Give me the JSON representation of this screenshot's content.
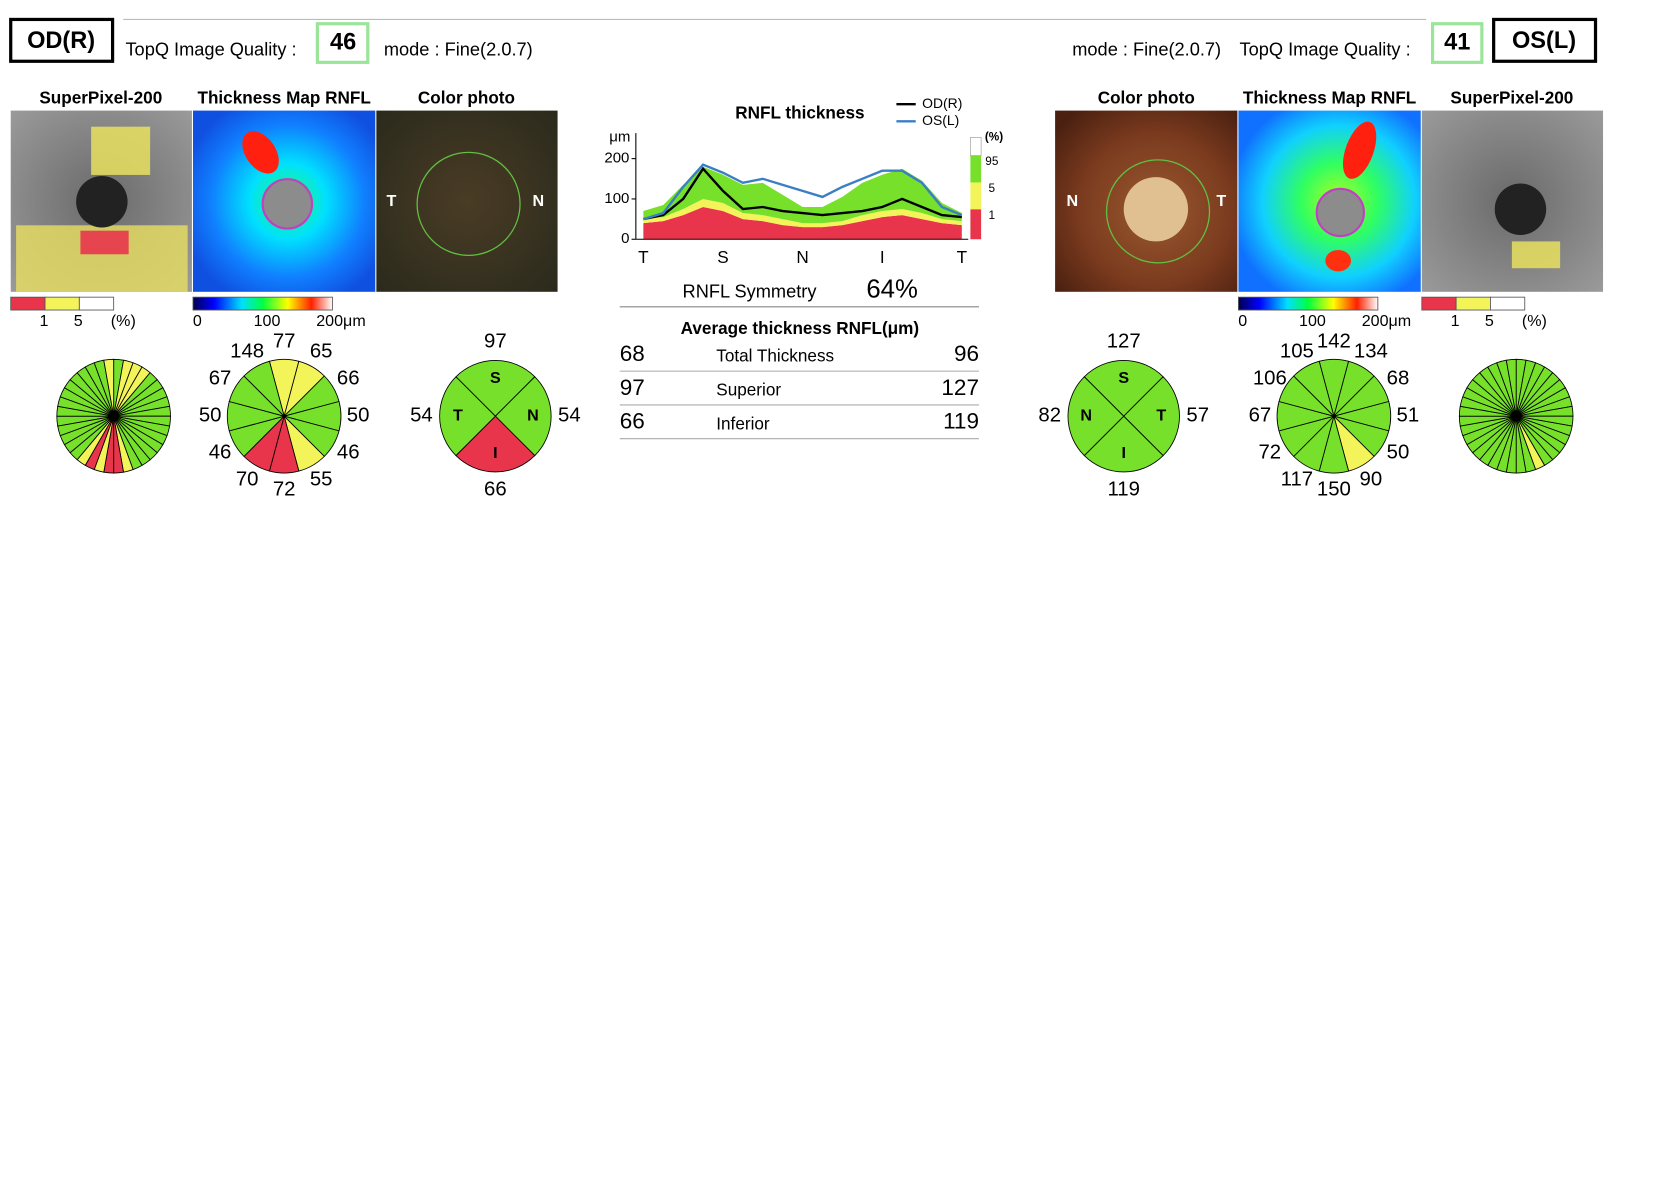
{
  "header": {
    "od_label": "OD(R)",
    "os_label": "OS(L)",
    "quality_label_od": "TopQ Image Quality :",
    "quality_od": 46,
    "mode_od": "mode : Fine(2.0.7)",
    "mode_os": "mode : Fine(2.0.7)",
    "quality_label_os": "TopQ Image Quality :",
    "quality_os": 41
  },
  "od": {
    "panels": [
      "SuperPixel-200",
      "Thickness Map RNFL",
      "Color photo"
    ],
    "photo_labels": [
      "T",
      "N"
    ],
    "superpixel_scale": {
      "ticks": [
        1,
        5
      ],
      "unit": "(%)"
    },
    "thickness_scale": {
      "ticks": [
        0,
        100,
        {
          "value": 200,
          "label": "200μm"
        }
      ]
    },
    "superpixel_sectors": [
      "#76e02a",
      "#f3f35a",
      "#f3f35a",
      "#f3f35a",
      "#76e02a",
      "#76e02a",
      "#76e02a",
      "#76e02a",
      "#76e02a",
      "#76e02a",
      "#76e02a",
      "#76e02a",
      "#76e02a",
      "#76e02a",
      "#76e02a",
      "#76e02a",
      "#f3f35a",
      "#e8354b",
      "#e8354b",
      "#f3f35a",
      "#e8354b",
      "#f3f35a",
      "#76e02a",
      "#76e02a",
      "#76e02a",
      "#76e02a",
      "#76e02a",
      "#76e02a",
      "#76e02a",
      "#76e02a",
      "#76e02a",
      "#76e02a",
      "#76e02a",
      "#76e02a",
      "#76e02a",
      "#f3f35a"
    ],
    "clock": {
      "values": [
        77,
        65,
        66,
        50,
        46,
        55,
        72,
        70,
        46,
        50,
        67,
        148
      ],
      "colors": [
        "#f3f35a",
        "#f3f35a",
        "#76e02a",
        "#76e02a",
        "#76e02a",
        "#f3f35a",
        "#e8354b",
        "#e8354b",
        "#76e02a",
        "#76e02a",
        "#76e02a",
        "#76e02a"
      ]
    },
    "quadrant": {
      "letters": [
        "S",
        "N",
        "I",
        "T"
      ],
      "values": [
        97,
        54,
        66,
        54
      ],
      "colors": [
        "#76e02a",
        "#76e02a",
        "#e8354b",
        "#76e02a"
      ]
    }
  },
  "os": {
    "panels": [
      "Color photo",
      "Thickness Map RNFL",
      "SuperPixel-200"
    ],
    "photo_labels": [
      "N",
      "T"
    ],
    "superpixel_scale": {
      "ticks": [
        1,
        5
      ],
      "unit": "(%)"
    },
    "thickness_scale": {
      "ticks": [
        0,
        100,
        {
          "value": 200,
          "label": "200μm"
        }
      ]
    },
    "superpixel_sectors": [
      "#76e02a",
      "#76e02a",
      "#76e02a",
      "#76e02a",
      "#76e02a",
      "#76e02a",
      "#76e02a",
      "#76e02a",
      "#76e02a",
      "#76e02a",
      "#76e02a",
      "#76e02a",
      "#76e02a",
      "#76e02a",
      "#76e02a",
      "#f3f35a",
      "#76e02a",
      "#76e02a",
      "#76e02a",
      "#76e02a",
      "#76e02a",
      "#76e02a",
      "#76e02a",
      "#76e02a",
      "#76e02a",
      "#76e02a",
      "#76e02a",
      "#76e02a",
      "#76e02a",
      "#76e02a",
      "#76e02a",
      "#76e02a",
      "#76e02a",
      "#76e02a",
      "#76e02a",
      "#76e02a"
    ],
    "clock": {
      "values": [
        142,
        134,
        68,
        51,
        50,
        90,
        150,
        117,
        72,
        67,
        106,
        105
      ],
      "colors": [
        "#76e02a",
        "#76e02a",
        "#76e02a",
        "#76e02a",
        "#76e02a",
        "#f3f35a",
        "#76e02a",
        "#76e02a",
        "#76e02a",
        "#76e02a",
        "#76e02a",
        "#76e02a"
      ]
    },
    "quadrant": {
      "letters": [
        "S",
        "T",
        "I",
        "N"
      ],
      "values": [
        127,
        57,
        119,
        82
      ],
      "colors": [
        "#76e02a",
        "#76e02a",
        "#76e02a",
        "#76e02a"
      ]
    }
  },
  "chart_data": {
    "type": "line",
    "title": "RNFL thickness",
    "y_unit": "μm",
    "categories": [
      "T",
      null,
      null,
      null,
      "S",
      null,
      null,
      null,
      "N",
      null,
      null,
      null,
      "I",
      null,
      null,
      null,
      "T"
    ],
    "ylim": [
      0,
      250
    ],
    "yticks": [
      0,
      100,
      200
    ],
    "series": [
      {
        "name": "OD(R)",
        "color": "#000000",
        "values": [
          50,
          60,
          100,
          175,
          120,
          75,
          80,
          70,
          65,
          60,
          65,
          70,
          80,
          100,
          80,
          60,
          55
        ]
      },
      {
        "name": "OS(L)",
        "color": "#3a7fc4",
        "values": [
          50,
          65,
          130,
          185,
          165,
          140,
          150,
          135,
          120,
          105,
          130,
          150,
          170,
          170,
          140,
          80,
          60
        ]
      }
    ],
    "bands": {
      "label": "(%)",
      "items": [
        {
          "label": "1",
          "color": "#e8354b",
          "values": [
            40,
            45,
            60,
            80,
            70,
            50,
            45,
            35,
            30,
            30,
            35,
            45,
            55,
            60,
            50,
            40,
            35
          ]
        },
        {
          "label": "5",
          "color": "#f3f35a",
          "values": [
            10,
            10,
            15,
            20,
            20,
            15,
            15,
            15,
            10,
            10,
            10,
            15,
            15,
            15,
            15,
            10,
            10
          ]
        },
        {
          "label": "95",
          "color": "#76e02a",
          "values": [
            20,
            30,
            60,
            80,
            70,
            70,
            80,
            60,
            40,
            40,
            60,
            80,
            90,
            100,
            80,
            40,
            20
          ]
        }
      ]
    }
  },
  "summary": {
    "symmetry_label": "RNFL Symmetry",
    "symmetry": "64%",
    "average_title": "Average thickness RNFL(μm)",
    "rows": [
      [
        68,
        "Total Thickness",
        96
      ],
      [
        97,
        "Superior",
        127
      ],
      [
        66,
        "Inferior",
        119
      ]
    ]
  }
}
